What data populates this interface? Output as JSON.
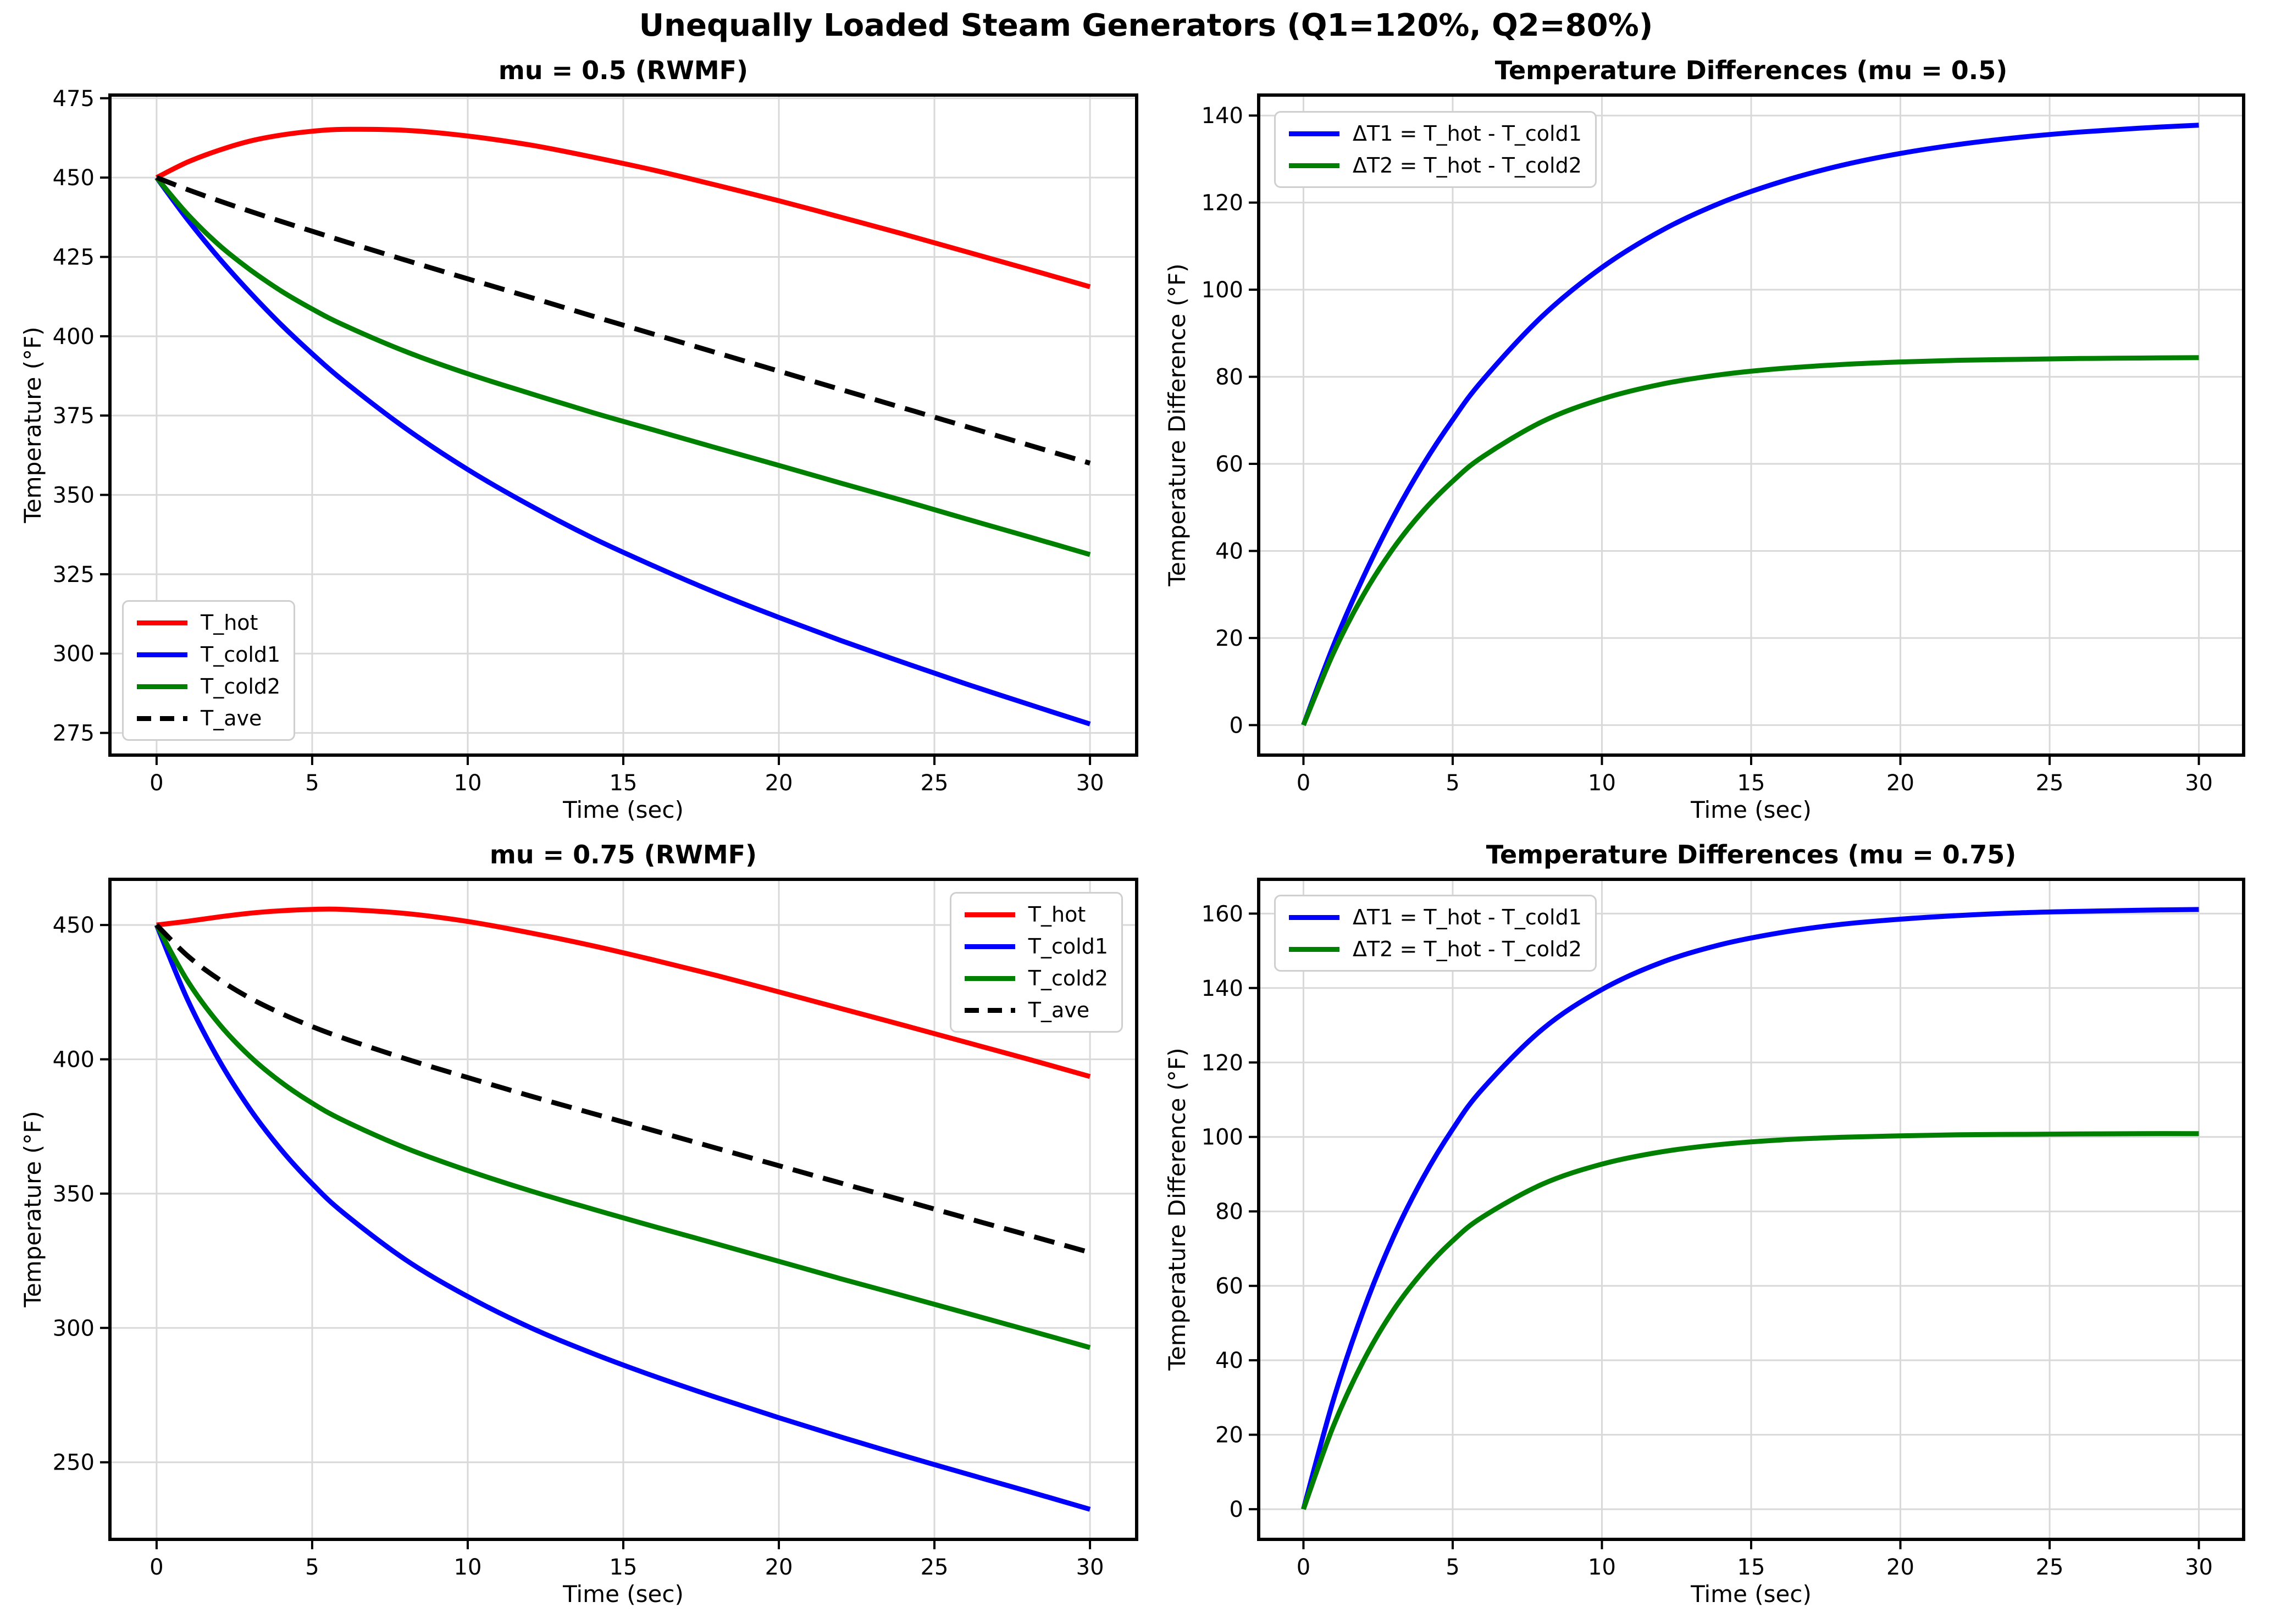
{
  "figure_title": "Unequally Loaded Steam Generators (Q1=120%, Q2=80%)",
  "colors": {
    "t_hot": "#ff0000",
    "t_cold1": "#0000ff",
    "t_cold2": "#008000",
    "t_ave": "#000000",
    "grid": "#d9d9d9",
    "spine": "#000000",
    "legend_border": "#cfcfcf",
    "background": "#ffffff"
  },
  "chart_data": [
    {
      "id": "tl",
      "type": "line",
      "title": "mu = 0.5 (RWMF)",
      "xlabel": "Time (sec)",
      "ylabel": "Temperature (°F)",
      "xlim": [
        -1.5,
        31.5
      ],
      "ylim": [
        268,
        476
      ],
      "xticks": [
        0,
        5,
        10,
        15,
        20,
        25,
        30
      ],
      "yticks": [
        275,
        300,
        325,
        350,
        375,
        400,
        425,
        450,
        475
      ],
      "grid": true,
      "legend_position": "lower-left",
      "x": [
        0,
        1,
        2,
        3,
        4,
        5,
        6,
        8,
        10,
        12,
        14,
        16,
        18,
        20,
        22,
        24,
        26,
        28,
        30
      ],
      "series": [
        {
          "name": "T_hot",
          "label": "T_hot",
          "color": "#ff0000",
          "dash": false,
          "values": [
            450,
            454.9,
            458.6,
            461.5,
            463.4,
            464.6,
            465.2,
            464.9,
            463.1,
            460.3,
            456.5,
            452.3,
            447.6,
            442.7,
            437.5,
            432.2,
            426.7,
            421.2,
            415.6
          ]
        },
        {
          "name": "T_cold1",
          "label": "T_cold1",
          "color": "#0000ff",
          "dash": false,
          "values": [
            450,
            436.7,
            424.7,
            413.8,
            403.7,
            394.5,
            386.0,
            371.0,
            358.0,
            346.7,
            336.5,
            327.5,
            319.1,
            311.4,
            304.1,
            297.2,
            290.5,
            284.1,
            277.8
          ]
        },
        {
          "name": "T_cold2",
          "label": "T_cold2",
          "color": "#008000",
          "dash": false,
          "values": [
            450,
            438.4,
            428.8,
            421.0,
            414.3,
            408.6,
            403.6,
            395.2,
            388.2,
            382.0,
            376.0,
            370.4,
            364.8,
            359.3,
            353.7,
            348.2,
            342.5,
            336.9,
            331.2
          ]
        },
        {
          "name": "T_ave",
          "label": "T_ave",
          "color": "#000000",
          "dash": true,
          "values": [
            450,
            446.2,
            442.7,
            439.4,
            436.2,
            433.1,
            430.0,
            424.0,
            418.1,
            412.3,
            406.4,
            400.6,
            394.8,
            389.0,
            383.2,
            377.4,
            371.6,
            365.8,
            360.0
          ]
        }
      ]
    },
    {
      "id": "tr",
      "type": "line",
      "title": "Temperature Differences (mu = 0.5)",
      "xlabel": "Time (sec)",
      "ylabel": "Temperature Difference (°F)",
      "xlim": [
        -1.5,
        31.5
      ],
      "ylim": [
        -6.9,
        144.7
      ],
      "xticks": [
        0,
        5,
        10,
        15,
        20,
        25,
        30
      ],
      "yticks": [
        0,
        20,
        40,
        60,
        80,
        100,
        120,
        140
      ],
      "grid": true,
      "legend_position": "upper-left",
      "x": [
        0,
        1,
        2,
        3,
        4,
        5,
        6,
        8,
        10,
        12,
        14,
        16,
        18,
        20,
        22,
        24,
        26,
        28,
        30
      ],
      "series": [
        {
          "name": "dT1",
          "label": "ΔT1 = T_hot - T_cold1",
          "color": "#0000ff",
          "dash": false,
          "values": [
            0,
            18.2,
            33.9,
            47.7,
            59.7,
            70.1,
            79.2,
            93.9,
            105.1,
            113.6,
            120.0,
            124.8,
            128.5,
            131.3,
            133.4,
            135.0,
            136.2,
            137.1,
            137.8
          ]
        },
        {
          "name": "dT2",
          "label": "ΔT2 = T_hot - T_cold2",
          "color": "#008000",
          "dash": false,
          "values": [
            0,
            16.5,
            29.8,
            40.5,
            49.1,
            56.0,
            61.6,
            69.7,
            74.9,
            78.3,
            80.5,
            81.9,
            82.8,
            83.4,
            83.8,
            84.0,
            84.2,
            84.3,
            84.4
          ]
        }
      ]
    },
    {
      "id": "bl",
      "type": "line",
      "title": "mu = 0.75 (RWMF)",
      "xlabel": "Time (sec)",
      "ylabel": "Temperature (°F)",
      "xlim": [
        -1.5,
        31.5
      ],
      "ylim": [
        221.3,
        467
      ],
      "xticks": [
        0,
        5,
        10,
        15,
        20,
        25,
        30
      ],
      "yticks": [
        250,
        300,
        350,
        400,
        450
      ],
      "grid": true,
      "legend_position": "upper-right",
      "x": [
        0,
        1,
        2,
        3,
        4,
        5,
        6,
        8,
        10,
        12,
        14,
        16,
        18,
        20,
        22,
        24,
        26,
        28,
        30
      ],
      "series": [
        {
          "name": "T_hot",
          "label": "T_hot",
          "color": "#ff0000",
          "dash": false,
          "values": [
            450,
            451.4,
            453.0,
            454.4,
            455.3,
            455.8,
            455.8,
            454.3,
            451.3,
            447.1,
            442.3,
            436.9,
            431.2,
            425.1,
            418.9,
            412.7,
            406.4,
            400.1,
            393.6
          ]
        },
        {
          "name": "T_cold1",
          "label": "T_cold1",
          "color": "#0000ff",
          "dash": false,
          "values": [
            450,
            422.1,
            399.8,
            381.5,
            366.4,
            353.7,
            342.9,
            325.4,
            311.7,
            300.2,
            290.6,
            282.0,
            274.1,
            266.6,
            259.4,
            252.5,
            245.8,
            239.2,
            232.5
          ]
        },
        {
          "name": "T_cold2",
          "label": "T_cold2",
          "color": "#008000",
          "dash": false,
          "values": [
            450,
            429.1,
            413.3,
            401.1,
            391.5,
            383.7,
            377.3,
            367.0,
            358.6,
            351.1,
            344.3,
            337.7,
            331.3,
            324.8,
            318.3,
            312.0,
            305.6,
            299.2,
            292.7
          ]
        },
        {
          "name": "T_ave",
          "label": "T_ave",
          "color": "#000000",
          "dash": true,
          "values": [
            450,
            438.5,
            429.8,
            422.8,
            417.1,
            412.2,
            407.9,
            400.2,
            393.2,
            386.4,
            379.9,
            373.4,
            366.9,
            360.4,
            353.9,
            347.5,
            341.0,
            334.6,
            328.1
          ]
        }
      ]
    },
    {
      "id": "br",
      "type": "line",
      "title": "Temperature Differences (mu = 0.75)",
      "xlabel": "Time (sec)",
      "ylabel": "Temperature Difference (°F)",
      "xlim": [
        -1.5,
        31.5
      ],
      "ylim": [
        -8.1,
        169.2
      ],
      "xticks": [
        0,
        5,
        10,
        15,
        20,
        25,
        30
      ],
      "yticks": [
        0,
        20,
        40,
        60,
        80,
        100,
        120,
        140,
        160
      ],
      "grid": true,
      "legend_position": "upper-left",
      "x": [
        0,
        1,
        2,
        3,
        4,
        5,
        6,
        8,
        10,
        12,
        14,
        16,
        18,
        20,
        22,
        24,
        26,
        28,
        30
      ],
      "series": [
        {
          "name": "dT1",
          "label": "ΔT1 = T_hot - T_cold1",
          "color": "#0000ff",
          "dash": false,
          "values": [
            0,
            29.3,
            53.2,
            72.9,
            88.9,
            102.1,
            112.9,
            128.9,
            139.6,
            146.9,
            151.7,
            154.9,
            157.1,
            158.5,
            159.5,
            160.2,
            160.6,
            160.9,
            161.1
          ]
        },
        {
          "name": "dT2",
          "label": "ΔT2 = T_hot - T_cold2",
          "color": "#008000",
          "dash": false,
          "values": [
            0,
            22.3,
            39.7,
            53.3,
            63.8,
            72.1,
            78.5,
            87.3,
            92.7,
            96.0,
            98.0,
            99.2,
            99.9,
            100.3,
            100.6,
            100.7,
            100.8,
            100.9,
            100.9
          ]
        }
      ]
    }
  ]
}
